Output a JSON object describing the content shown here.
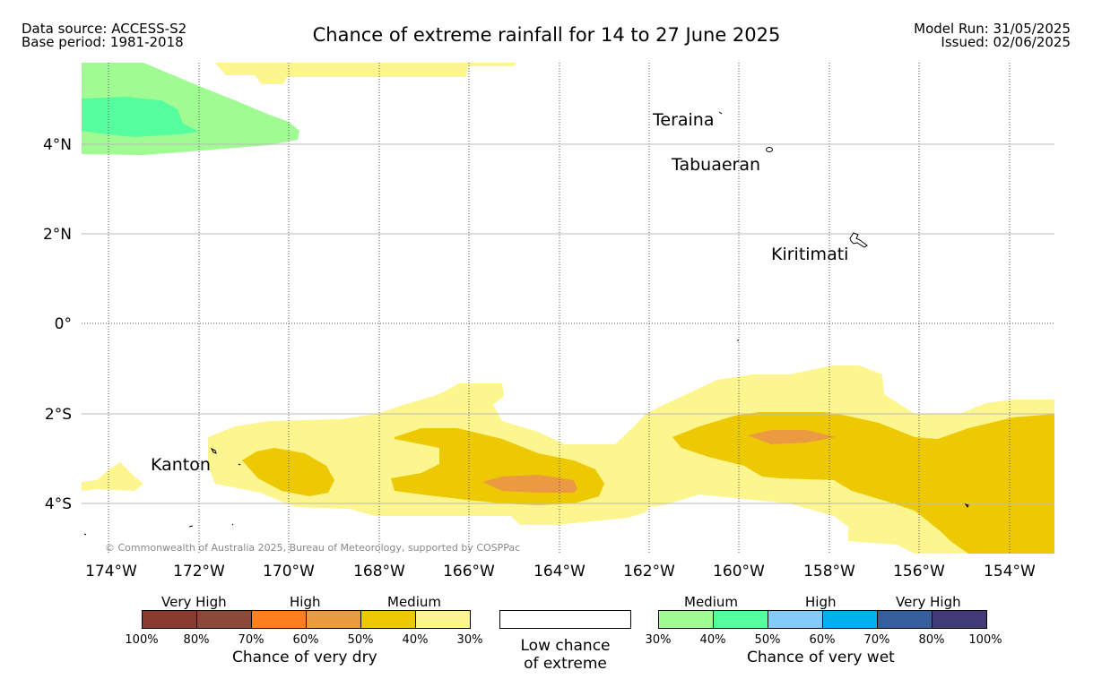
{
  "header": {
    "data_source": "Data source: ACCESS-S2",
    "base_period": "Base period: 1981-2018",
    "title": "Chance of extreme rainfall for 14 to 27 June 2025",
    "model_run": "Model Run: 31/05/2025",
    "issued": "Issued: 02/06/2025"
  },
  "map": {
    "x_ticks": [
      "174°W",
      "172°W",
      "170°W",
      "168°W",
      "166°W",
      "164°W",
      "162°W",
      "160°W",
      "158°W",
      "156°W",
      "154°W"
    ],
    "y_ticks": [
      "4°N",
      "2°N",
      "0°",
      "2°S",
      "4°S"
    ],
    "places": {
      "teraina": "Teraina",
      "tabuaeran": "Tabuaeran",
      "kiritimati": "Kiritimati",
      "kanton": "Kanton"
    },
    "copyright": "© Commonwealth of Australia 2025, Bureau of Meteorology, supported by COSPPac",
    "fill_colors": {
      "dry_medium_light": "#fdf58e",
      "dry_medium": "#edc903",
      "dry_high": "#ec9a42",
      "wet_medium_light": "#9ffb92",
      "wet_medium": "#55fd9e"
    }
  },
  "legend": {
    "dry": {
      "categories": [
        "Very High",
        "High",
        "Medium"
      ],
      "colors": [
        "#8b3a30",
        "#8b4a38",
        "#fd7f20",
        "#ec9a42",
        "#edc903",
        "#fdf58e"
      ],
      "ticks": [
        "100%",
        "80%",
        "70%",
        "60%",
        "50%",
        "40%",
        "30%"
      ],
      "title": "Chance of very dry"
    },
    "low": {
      "line1": "Low chance",
      "line2": "of extreme"
    },
    "wet": {
      "categories": [
        "Medium",
        "High",
        "Very High"
      ],
      "colors": [
        "#9ffb92",
        "#55fd9e",
        "#85cbfa",
        "#00b1ee",
        "#355e9c",
        "#403a78"
      ],
      "ticks": [
        "30%",
        "40%",
        "50%",
        "60%",
        "70%",
        "80%",
        "100%"
      ],
      "title": "Chance of very wet"
    }
  }
}
